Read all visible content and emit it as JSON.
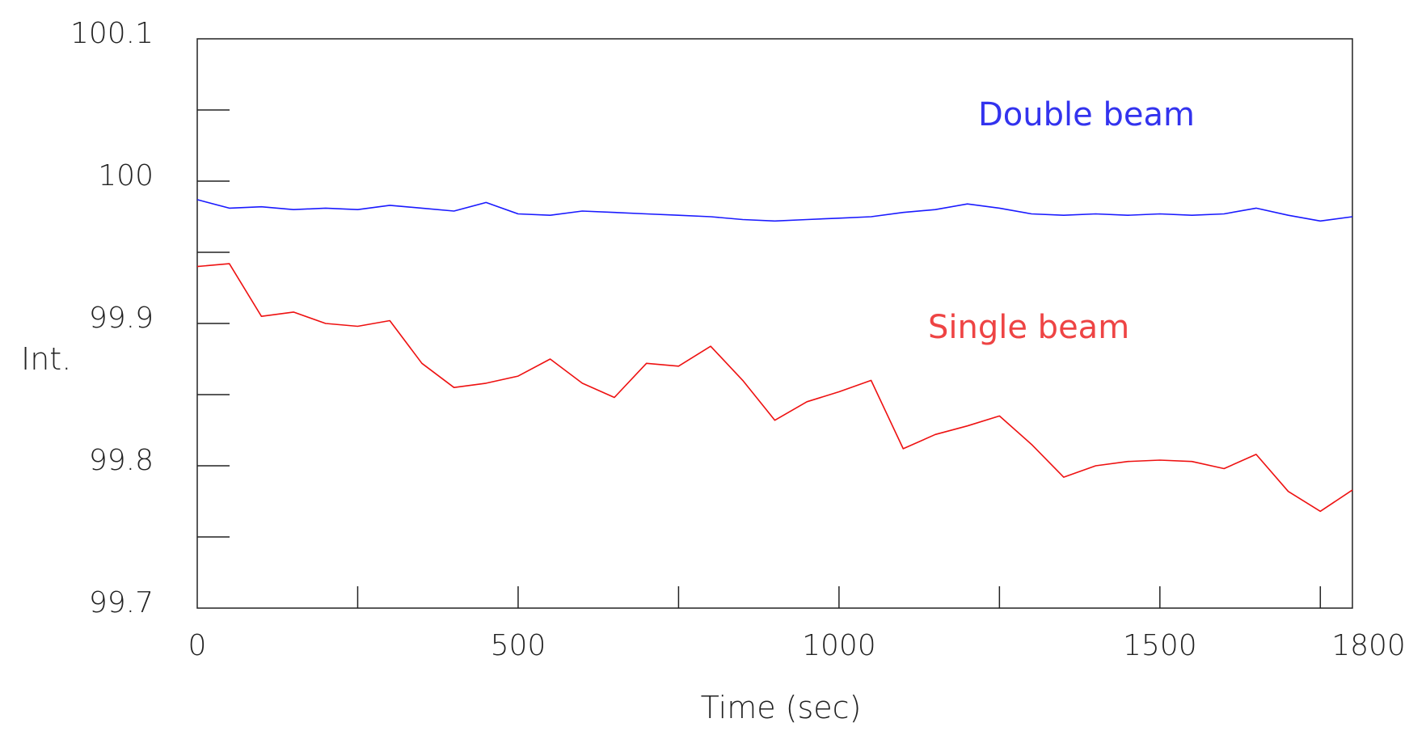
{
  "chart_data": {
    "type": "line",
    "title": "",
    "xlabel": "Time (sec)",
    "ylabel": "Int.",
    "xlim": [
      0,
      1800
    ],
    "ylim": [
      99.7,
      100.1
    ],
    "x_tick_labels": [
      "0",
      "500",
      "1000",
      "1500",
      "1800"
    ],
    "y_tick_labels": [
      "99.7",
      "99.8",
      "99.9",
      "100",
      "100.1"
    ],
    "grid": false,
    "series": [
      {
        "name": "Double beam",
        "color": "#1a1aff",
        "label_color": "#3333ee",
        "x": [
          0,
          50,
          100,
          150,
          200,
          250,
          300,
          350,
          400,
          450,
          500,
          550,
          600,
          650,
          700,
          750,
          800,
          850,
          900,
          950,
          1000,
          1050,
          1100,
          1150,
          1200,
          1250,
          1300,
          1350,
          1400,
          1450,
          1500,
          1550,
          1600,
          1650,
          1700,
          1750,
          1800
        ],
        "y": [
          99.987,
          99.981,
          99.982,
          99.98,
          99.981,
          99.98,
          99.983,
          99.981,
          99.979,
          99.985,
          99.977,
          99.976,
          99.979,
          99.978,
          99.977,
          99.976,
          99.975,
          99.973,
          99.972,
          99.973,
          99.974,
          99.975,
          99.978,
          99.98,
          99.984,
          99.981,
          99.977,
          99.976,
          99.977,
          99.976,
          99.977,
          99.976,
          99.977,
          99.981,
          99.976,
          99.972,
          99.975
        ]
      },
      {
        "name": "Single beam",
        "color": "#ee1111",
        "label_color": "#ee4444",
        "x": [
          0,
          50,
          100,
          150,
          200,
          250,
          300,
          350,
          400,
          450,
          500,
          550,
          600,
          650,
          700,
          750,
          800,
          850,
          900,
          950,
          1000,
          1050,
          1100,
          1150,
          1200,
          1250,
          1300,
          1350,
          1400,
          1450,
          1500,
          1550,
          1600,
          1650,
          1700,
          1750,
          1800
        ],
        "y": [
          99.94,
          99.942,
          99.905,
          99.908,
          99.9,
          99.898,
          99.902,
          99.872,
          99.855,
          99.858,
          99.863,
          99.875,
          99.858,
          99.848,
          99.872,
          99.87,
          99.884,
          99.86,
          99.832,
          99.845,
          99.852,
          99.86,
          99.812,
          99.822,
          99.828,
          99.835,
          99.815,
          99.792,
          99.8,
          99.803,
          99.804,
          99.803,
          99.798,
          99.808,
          99.782,
          99.768,
          99.783
        ]
      }
    ]
  }
}
